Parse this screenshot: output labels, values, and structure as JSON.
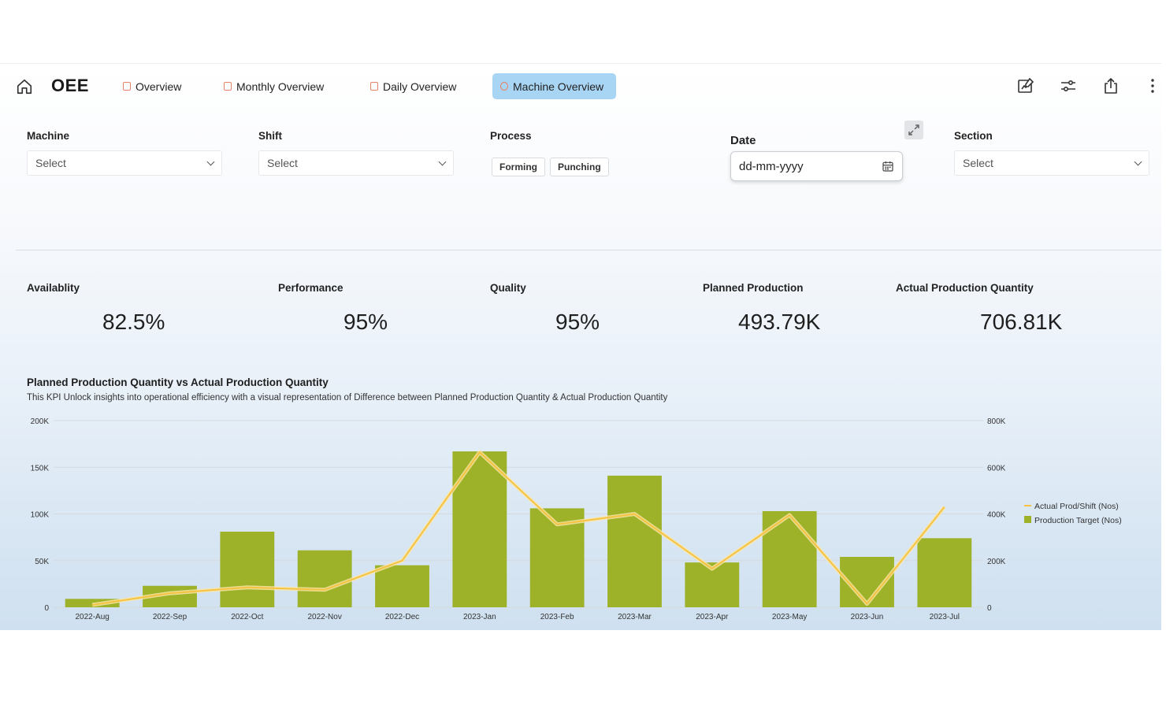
{
  "header": {
    "title": "OEE",
    "tabs": [
      {
        "label": "Overview"
      },
      {
        "label": "Monthly Overview"
      },
      {
        "label": "Daily Overview"
      },
      {
        "label": "Machine Overview",
        "active": true
      }
    ]
  },
  "filters": {
    "machine": {
      "label": "Machine",
      "value": "Select"
    },
    "shift": {
      "label": "Shift",
      "value": "Select"
    },
    "process": {
      "label": "Process",
      "options": [
        "Forming",
        "Punching"
      ]
    },
    "date": {
      "label": "Date",
      "placeholder": "dd-mm-yyyy"
    },
    "section": {
      "label": "Section",
      "value": "Select"
    }
  },
  "kpis": [
    {
      "label": "Availablity",
      "value": "82.5%"
    },
    {
      "label": "Performance",
      "value": "95%"
    },
    {
      "label": "Quality",
      "value": "95%"
    },
    {
      "label": "Planned Production",
      "value": "493.79K"
    },
    {
      "label": "Actual Production Quantity",
      "value": "706.81K"
    }
  ],
  "chart": {
    "title": "Planned Production Quantity vs Actual Production Quantity",
    "subtitle": "This KPI Unlock insights into operational efficiency with a visual representation of Difference between Planned Production Quantity & Actual Production Quantity"
  },
  "chart_data": {
    "type": "bar",
    "categories": [
      "2022-Aug",
      "2022-Sep",
      "2022-Oct",
      "2022-Nov",
      "2022-Dec",
      "2023-Jan",
      "2023-Feb",
      "2023-Mar",
      "2023-Apr",
      "2023-May",
      "2023-Jun",
      "2023-Jul"
    ],
    "series": [
      {
        "name": "Production Target (Nos)",
        "type": "bar",
        "axis": "left",
        "color": "#9db228",
        "values": [
          9000,
          23000,
          81000,
          61000,
          45000,
          167000,
          106000,
          141000,
          48000,
          103000,
          54000,
          74000
        ]
      },
      {
        "name": "Actual  Prod/Shift (Nos)",
        "type": "line",
        "axis": "right",
        "color": "#f5c242",
        "values": [
          10000,
          60000,
          85000,
          75000,
          200000,
          665000,
          355000,
          400000,
          165000,
          395000,
          15000,
          430000
        ]
      }
    ],
    "ylim_left": [
      0,
      200000
    ],
    "yticks_left": [
      "0",
      "50K",
      "100K",
      "150K",
      "200K"
    ],
    "ylim_right": [
      0,
      800000
    ],
    "yticks_right": [
      "0",
      "200K",
      "400K",
      "600K",
      "800K"
    ],
    "grid": true,
    "legend": "right"
  },
  "colors": {
    "accent_tab": "#a9d5f4",
    "tab_icon": "#e8826a",
    "bar": "#9db228",
    "line": "#f5c242"
  }
}
